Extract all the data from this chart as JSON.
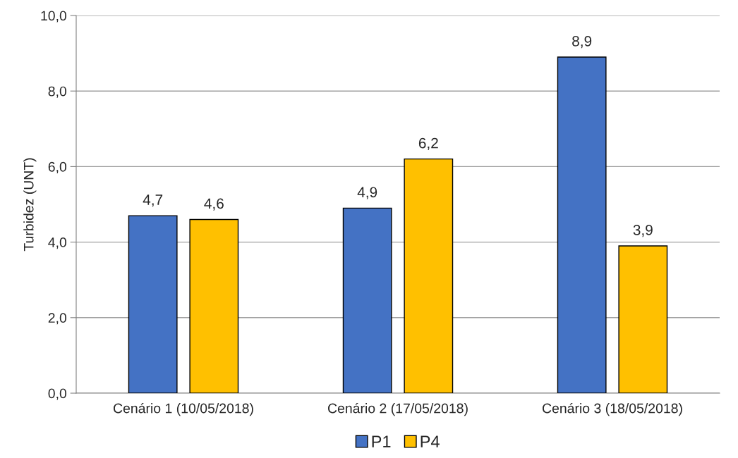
{
  "chart_data": {
    "type": "bar",
    "ylabel": "Turbidez (UNT)",
    "categories": [
      "Cenário 1 (10/05/2018)",
      "Cenário 2 (17/05/2018)",
      "Cenário 3 (18/05/2018)"
    ],
    "series": [
      {
        "name": "P1",
        "color": "#4472c4",
        "values": [
          4.7,
          4.9,
          8.9
        ],
        "value_labels": [
          "4,7",
          "4,9",
          "8,9"
        ]
      },
      {
        "name": "P4",
        "color": "#ffc000",
        "values": [
          4.6,
          6.2,
          3.9
        ],
        "value_labels": [
          "4,6",
          "6,2",
          "3,9"
        ]
      }
    ],
    "ylim": [
      0,
      10
    ],
    "yticks": [
      {
        "value": 0,
        "label": "0,0"
      },
      {
        "value": 2,
        "label": "2,0"
      },
      {
        "value": 4,
        "label": "4,0"
      },
      {
        "value": 6,
        "label": "6,0"
      },
      {
        "value": 8,
        "label": "8,0"
      },
      {
        "value": 10,
        "label": "10,0"
      }
    ],
    "grid": "y",
    "legend": "bottom"
  }
}
